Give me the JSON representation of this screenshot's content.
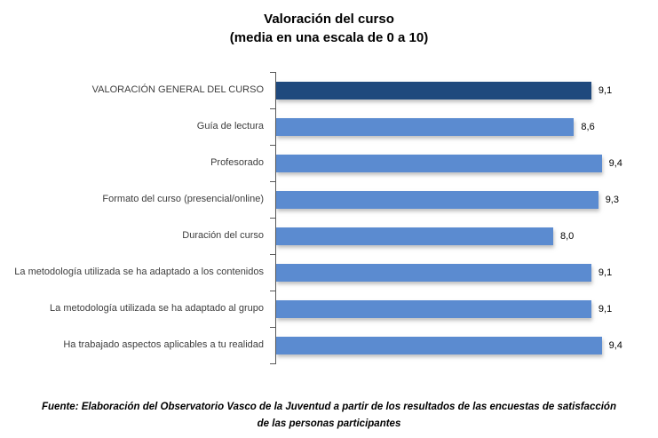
{
  "chart_data": {
    "type": "bar",
    "orientation": "horizontal",
    "title": "Valoración del curso",
    "subtitle": "(media en una escala de 0 a 10)",
    "categories": [
      "VALORACIÓN GENERAL DEL CURSO",
      "Guía de lectura",
      "Profesorado",
      "Formato del curso (presencial/online)",
      "Duración del curso",
      "La metodología utilizada se ha adaptado a los contenidos",
      "La metodología utilizada se ha adaptado al grupo",
      "Ha trabajado aspectos aplicables a tu realidad"
    ],
    "values": [
      9.1,
      8.6,
      9.4,
      9.3,
      8.0,
      9.1,
      9.1,
      9.4
    ],
    "value_labels": [
      "9,1",
      "8,6",
      "9,4",
      "9,3",
      "8,0",
      "9,1",
      "9,1",
      "9,4"
    ],
    "xlim": [
      0,
      10
    ],
    "grid": false,
    "legend_position": "none",
    "highlight_index": 0,
    "colors": {
      "highlight_bar": "#1F497D",
      "default_bar": "#5B8BD0",
      "axis": "#595959"
    }
  },
  "footer": {
    "source": "Fuente: Elaboración del Observatorio Vasco de la Juventud a partir de los resultados de las encuestas de satisfacción de las personas participantes"
  }
}
